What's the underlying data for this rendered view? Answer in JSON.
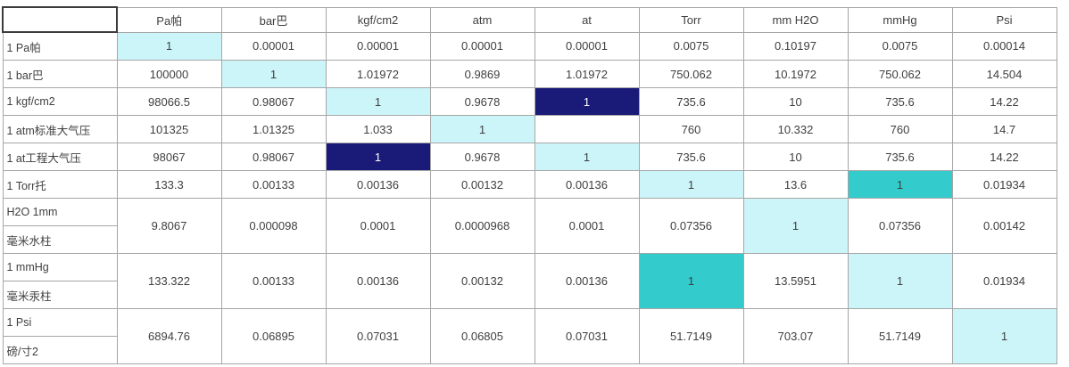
{
  "title": "pressure-unit-conversion-table",
  "colors": {
    "diagonal_highlight": "#ccf5fa",
    "strong_highlight": "#33cbcb",
    "selected_highlight": "#1a1a78",
    "selected_text": "#ffffff",
    "grid_border": "#a6a6a6",
    "cell_text": "#3f3f3f",
    "active_cell_border": "#3b3b3b"
  },
  "table": {
    "columns": [
      "",
      "Pa帕",
      "bar巴",
      "kgf/cm2",
      "atm",
      "at",
      "Torr",
      "mm H2O",
      "mmHg",
      "Psi"
    ],
    "rows": [
      {
        "label_lines": [
          "1 Pa帕"
        ],
        "values": [
          "1",
          "0.00001",
          "0.00001",
          "0.00001",
          "0.00001",
          "0.0075",
          "0.10197",
          "0.0075",
          "0.00014"
        ],
        "highlights": {
          "0": "light"
        }
      },
      {
        "label_lines": [
          "1 bar巴"
        ],
        "values": [
          "100000",
          "1",
          "1.01972",
          "0.9869",
          "1.01972",
          "750.062",
          "10.1972",
          "750.062",
          "14.504"
        ],
        "highlights": {
          "1": "light"
        }
      },
      {
        "label_lines": [
          "1 kgf/cm2"
        ],
        "values": [
          "98066.5",
          "0.98067",
          "1",
          "0.9678",
          "1",
          "735.6",
          "10",
          "735.6",
          "14.22"
        ],
        "highlights": {
          "2": "light",
          "4": "navy"
        }
      },
      {
        "label_lines": [
          "1 atm标准大气压"
        ],
        "values": [
          "101325",
          "1.01325",
          "1.033",
          "1",
          "",
          "760",
          "10.332",
          "760",
          "14.7"
        ],
        "highlights": {
          "3": "light"
        }
      },
      {
        "label_lines": [
          "1 at工程大气压"
        ],
        "values": [
          "98067",
          "0.98067",
          "1",
          "0.9678",
          "1",
          "735.6",
          "10",
          "735.6",
          "14.22"
        ],
        "highlights": {
          "2": "navy",
          "4": "light"
        }
      },
      {
        "label_lines": [
          "1 Torr托"
        ],
        "values": [
          "133.3",
          "0.00133",
          "0.00136",
          "0.00132",
          "0.00136",
          "1",
          "13.6",
          "1",
          "0.01934"
        ],
        "highlights": {
          "5": "light",
          "7": "teal"
        }
      },
      {
        "label_lines": [
          "H2O 1mm",
          "毫米水柱"
        ],
        "values": [
          "9.8067",
          "0.000098",
          "0.0001",
          "0.0000968",
          "0.0001",
          "0.07356",
          "1",
          "0.07356",
          "0.00142"
        ],
        "highlights": {
          "6": "light"
        }
      },
      {
        "label_lines": [
          "1 mmHg",
          "毫米汞柱"
        ],
        "values": [
          "133.322",
          "0.00133",
          "0.00136",
          "0.00132",
          "0.00136",
          "1",
          "13.5951",
          "1",
          "0.01934"
        ],
        "highlights": {
          "5": "teal",
          "7": "light"
        }
      },
      {
        "label_lines": [
          "1 Psi",
          "磅/寸2"
        ],
        "values": [
          "6894.76",
          "0.06895",
          "0.07031",
          "0.06805",
          "0.07031",
          "51.7149",
          "703.07",
          "51.7149",
          "1"
        ],
        "highlights": {
          "8": "light"
        }
      }
    ]
  }
}
